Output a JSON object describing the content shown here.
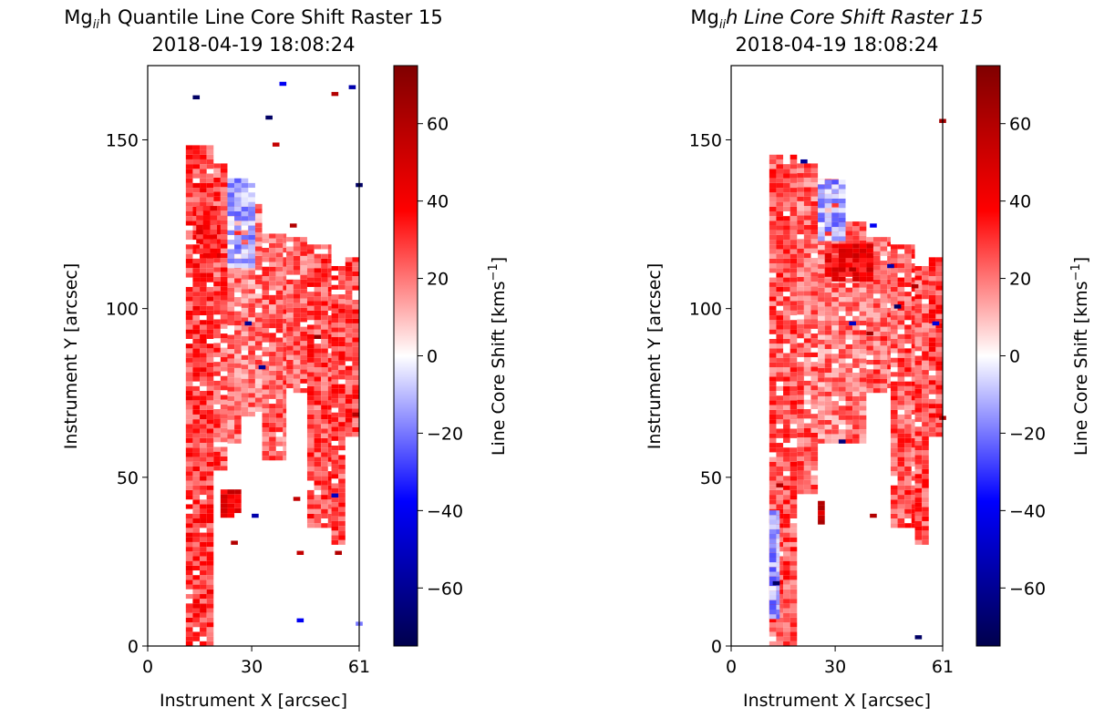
{
  "chart_data": [
    {
      "type": "heatmap",
      "title_parts": [
        "Mg",
        "ii",
        "h Quantile Line Core Shift Raster 15"
      ],
      "title_italic_h": false,
      "subtitle": "2018-04-19 18:08:24",
      "xlabel": "Instrument X [arcsec]",
      "ylabel": "Instrument Y [arcsec]",
      "xlim": [
        0,
        61
      ],
      "ylim": [
        0,
        172
      ],
      "x_ticks": [
        0,
        30,
        61
      ],
      "y_ticks": [
        0,
        50,
        100,
        150
      ],
      "colorbar": {
        "label_main": "Line Core Shift [kms",
        "label_sup": "−1",
        "label_end": "]",
        "range": [
          -75,
          75
        ],
        "ticks": [
          60,
          40,
          20,
          0,
          -20,
          -40,
          -60
        ],
        "tick_labels": [
          "60",
          "40",
          "20",
          "0",
          "−20",
          "−40",
          "−60"
        ],
        "colormap": "seismic"
      },
      "regions": [
        {
          "x0": 11,
          "x1": 19,
          "y0": 0,
          "y1": 148,
          "value": 28
        },
        {
          "x0": 19,
          "x1": 23,
          "y0": 52,
          "y1": 142,
          "value": 25
        },
        {
          "x0": 23,
          "x1": 27,
          "y0": 60,
          "y1": 135,
          "value": 20
        },
        {
          "x0": 27,
          "x1": 33,
          "y0": 68,
          "y1": 130,
          "value": 18
        },
        {
          "x0": 33,
          "x1": 40,
          "y0": 55,
          "y1": 122,
          "value": 22
        },
        {
          "x0": 40,
          "x1": 46,
          "y0": 75,
          "y1": 120,
          "value": 22
        },
        {
          "x0": 46,
          "x1": 53,
          "y0": 35,
          "y1": 118,
          "value": 26
        },
        {
          "x0": 53,
          "x1": 57,
          "y0": 30,
          "y1": 112,
          "value": 26
        },
        {
          "x0": 57,
          "x1": 61,
          "y0": 62,
          "y1": 115,
          "value": 28
        },
        {
          "x0": 23,
          "x1": 31,
          "y0": 112,
          "y1": 138,
          "value": -12
        },
        {
          "x0": 14,
          "x1": 21,
          "y0": 115,
          "y1": 130,
          "value": 35
        },
        {
          "x0": 21,
          "x1": 27,
          "y0": 38,
          "y1": 46,
          "value": 45
        }
      ],
      "pixels": [
        {
          "x": 13,
          "y": 162,
          "value": -70
        },
        {
          "x": 34,
          "y": 156,
          "value": -70
        },
        {
          "x": 38,
          "y": 166,
          "value": -40
        },
        {
          "x": 53,
          "y": 163,
          "value": 60
        },
        {
          "x": 58,
          "y": 165,
          "value": -55
        },
        {
          "x": 60,
          "y": 136,
          "value": -70
        },
        {
          "x": 36,
          "y": 148,
          "value": 55
        },
        {
          "x": 41,
          "y": 124,
          "value": 60
        },
        {
          "x": 28,
          "y": 95,
          "value": -60
        },
        {
          "x": 32,
          "y": 82,
          "value": -60
        },
        {
          "x": 48,
          "y": 91,
          "value": 70
        },
        {
          "x": 59,
          "y": 68,
          "value": 60
        },
        {
          "x": 30,
          "y": 38,
          "value": -55
        },
        {
          "x": 42,
          "y": 43,
          "value": 55
        },
        {
          "x": 53,
          "y": 44,
          "value": -50
        },
        {
          "x": 24,
          "y": 30,
          "value": 60
        },
        {
          "x": 43,
          "y": 27,
          "value": 55
        },
        {
          "x": 54,
          "y": 27,
          "value": 60
        },
        {
          "x": 43,
          "y": 7,
          "value": -40
        },
        {
          "x": 60,
          "y": 6,
          "value": -20
        }
      ]
    },
    {
      "type": "heatmap",
      "title_parts": [
        "Mg",
        "ii",
        "h Line Core Shift Raster 15"
      ],
      "title_italic_h": true,
      "subtitle": "2018-04-19 18:08:24",
      "xlabel": "Instrument X [arcsec]",
      "ylabel": "Instrument Y [arcsec]",
      "xlim": [
        0,
        61
      ],
      "ylim": [
        0,
        172
      ],
      "x_ticks": [
        0,
        30,
        61
      ],
      "y_ticks": [
        0,
        50,
        100,
        150
      ],
      "colorbar": {
        "label_main": "Line Core Shift [kms",
        "label_sup": "−1",
        "label_end": "]",
        "range": [
          -75,
          75
        ],
        "ticks": [
          60,
          40,
          20,
          0,
          -20,
          -40,
          -60
        ],
        "tick_labels": [
          "60",
          "40",
          "20",
          "0",
          "−20",
          "−40",
          "−60"
        ],
        "colormap": "seismic"
      },
      "regions": [
        {
          "x0": 11,
          "x1": 19,
          "y0": 0,
          "y1": 145,
          "value": 25
        },
        {
          "x0": 19,
          "x1": 25,
          "y0": 45,
          "y1": 142,
          "value": 22
        },
        {
          "x0": 25,
          "x1": 31,
          "y0": 60,
          "y1": 138,
          "value": 18
        },
        {
          "x0": 31,
          "x1": 39,
          "y0": 60,
          "y1": 125,
          "value": 20
        },
        {
          "x0": 39,
          "x1": 46,
          "y0": 75,
          "y1": 120,
          "value": 22
        },
        {
          "x0": 46,
          "x1": 53,
          "y0": 35,
          "y1": 118,
          "value": 24
        },
        {
          "x0": 53,
          "x1": 57,
          "y0": 30,
          "y1": 112,
          "value": 25
        },
        {
          "x0": 57,
          "x1": 61,
          "y0": 62,
          "y1": 115,
          "value": 26
        },
        {
          "x0": 25,
          "x1": 33,
          "y0": 120,
          "y1": 138,
          "value": -14
        },
        {
          "x0": 27,
          "x1": 41,
          "y0": 108,
          "y1": 118,
          "value": 40
        },
        {
          "x0": 11,
          "x1": 14,
          "y0": 8,
          "y1": 40,
          "value": -15
        },
        {
          "x0": 25,
          "x1": 27,
          "y0": 36,
          "y1": 44,
          "value": 50
        }
      ],
      "pixels": [
        {
          "x": 60,
          "y": 155,
          "value": 65
        },
        {
          "x": 20,
          "y": 143,
          "value": -60
        },
        {
          "x": 40,
          "y": 124,
          "value": -40
        },
        {
          "x": 34,
          "y": 111,
          "value": 60
        },
        {
          "x": 45,
          "y": 112,
          "value": -55
        },
        {
          "x": 52,
          "y": 106,
          "value": 60
        },
        {
          "x": 47,
          "y": 100,
          "value": -70
        },
        {
          "x": 34,
          "y": 95,
          "value": -50
        },
        {
          "x": 39,
          "y": 92,
          "value": 65
        },
        {
          "x": 58,
          "y": 95,
          "value": -45
        },
        {
          "x": 60,
          "y": 67,
          "value": 60
        },
        {
          "x": 31,
          "y": 60,
          "value": -65
        },
        {
          "x": 13,
          "y": 47,
          "value": 60
        },
        {
          "x": 40,
          "y": 38,
          "value": 60
        },
        {
          "x": 12,
          "y": 18,
          "value": -70
        },
        {
          "x": 53,
          "y": 2,
          "value": -70
        }
      ]
    }
  ]
}
